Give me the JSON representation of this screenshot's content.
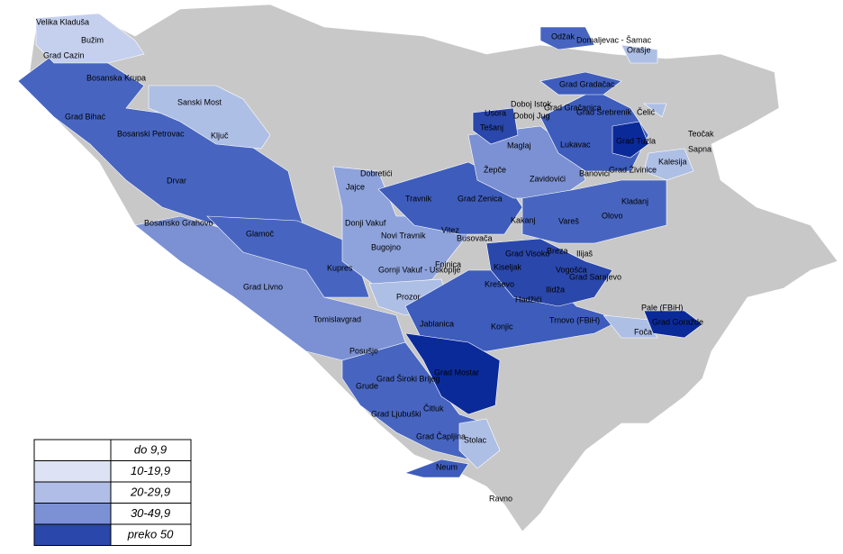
{
  "labels": [
    "Velika Kladuša",
    "Bužim",
    "Grad Cazin",
    "Bosanska Krupa",
    "Sanski Most",
    "Grad Bihać",
    "Ključ",
    "Bosanski Petrovac",
    "Drvar",
    "Bosansko Grahovo",
    "Glamoč",
    "Kupres",
    "Grad Livno",
    "Tomislavgrad",
    "Posušje",
    "Prozor",
    "Jablanica",
    "Konjic",
    "Grad Mostar",
    "Grad Široki Brijeg",
    "Grude",
    "Čitluk",
    "Grad Ljubuški",
    "Grad Čapljina",
    "Stolac",
    "Neum",
    "Ravno",
    "Dobretići",
    "Jajce",
    "Donji Vakuf",
    "Bugojno",
    "Novi Travnik",
    "Travnik",
    "Vitez",
    "Busovača",
    "Gornji Vakuf - Uskoplje",
    "Fojnica",
    "Kiseljak",
    "Kreševo",
    "Hadžići",
    "Grad Zenica",
    "Kakanj",
    "Vareš",
    "Olovo",
    "Breza",
    "Ilijaš",
    "Grad Visoko",
    "Vogošća",
    "Grad Sarajevo",
    "Ilidža",
    "Trnovo (FBiH)",
    "Pale (FBiH)",
    "Grad Goražde",
    "Foča",
    "Žepče",
    "Zavidovići",
    "Maglaj",
    "Tešanj",
    "Usora",
    "Doboj Jug",
    "Doboj Istok",
    "Grad Gračanica",
    "Grad Gradačac",
    "Grad Srebrenik",
    "Čelić",
    "Lukavac",
    "Grad Tuzla",
    "Banovići",
    "Grad Živinice",
    "Kalesija",
    "Teočak",
    "Sapna",
    "Kladanj",
    "Odžak",
    "Domaljevac - Šamac",
    "Orašje"
  ],
  "legend": [
    "do 9,9",
    "10-19,9",
    "20-29,9",
    "30-49,9",
    "preko 50"
  ]
}
